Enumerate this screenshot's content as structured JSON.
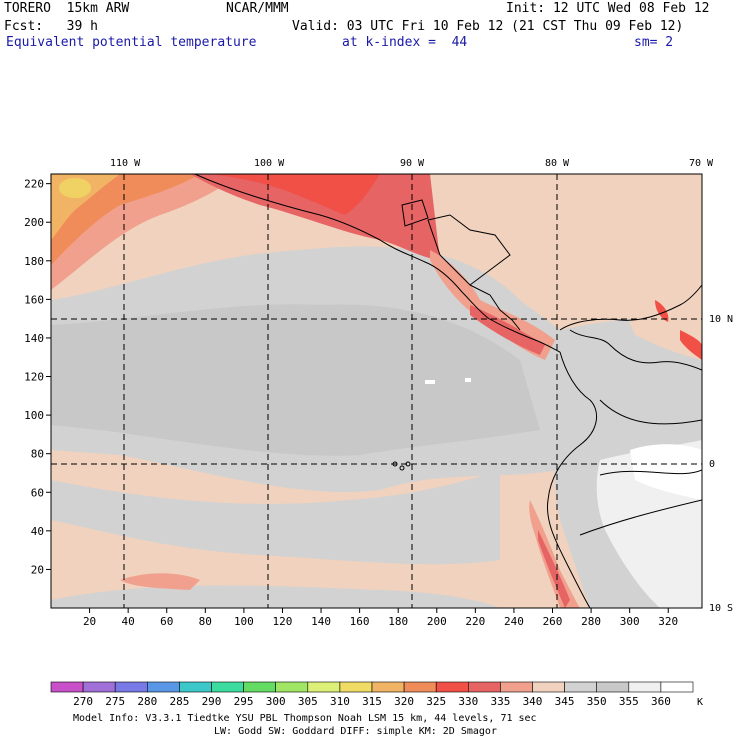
{
  "header": {
    "model": "TORERO  15km ARW",
    "org": "NCAR/MMM",
    "init": "Init: 12 UTC Wed 08 Feb 12",
    "fcst": "Fcst:   39 h",
    "valid": "Valid: 03 UTC Fri 10 Feb 12 (21 CST Thu 09 Feb 12)",
    "field": "Equivalent potential temperature",
    "level": "at k-index =  44",
    "smooth": "sm= 2"
  },
  "map": {
    "lon_labels": [
      "110 W",
      "100 W",
      "90 W",
      "80 W",
      "70 W"
    ],
    "lat_labels": [
      "10 N",
      "0",
      "10 S"
    ],
    "y_ticks": [
      "220",
      "200",
      "180",
      "160",
      "140",
      "120",
      "100",
      "80",
      "60",
      "40",
      "20"
    ],
    "x_ticks": [
      "20",
      "40",
      "60",
      "80",
      "100",
      "120",
      "140",
      "160",
      "180",
      "200",
      "220",
      "240",
      "260",
      "280",
      "300",
      "320"
    ]
  },
  "colorbar": {
    "labels": [
      "270",
      "275",
      "280",
      "285",
      "290",
      "295",
      "300",
      "305",
      "310",
      "315",
      "320",
      "325",
      "330",
      "335",
      "340",
      "345",
      "350",
      "355",
      "360"
    ],
    "unit": "K",
    "colors": [
      "#c850c8",
      "#a070d8",
      "#7878e6",
      "#5a96e6",
      "#3cc8c8",
      "#3cdca0",
      "#64dc64",
      "#a0e664",
      "#dcf078",
      "#f0dc64",
      "#f0b464",
      "#f08c5a",
      "#f05046",
      "#e66464",
      "#f0a08c",
      "#f0d2be",
      "#d2d2d2",
      "#c8c8c8",
      "#f0f0f0",
      "#ffffff"
    ]
  },
  "footer": {
    "line1": "Model Info: V3.3.1   Tiedtke YSU PBL  Thompson    Noah LSM  15 km,   44 levels,   71 sec",
    "line2": "LW: Godd SW: Goddard DIFF: simple KM: 2D Smagor"
  }
}
